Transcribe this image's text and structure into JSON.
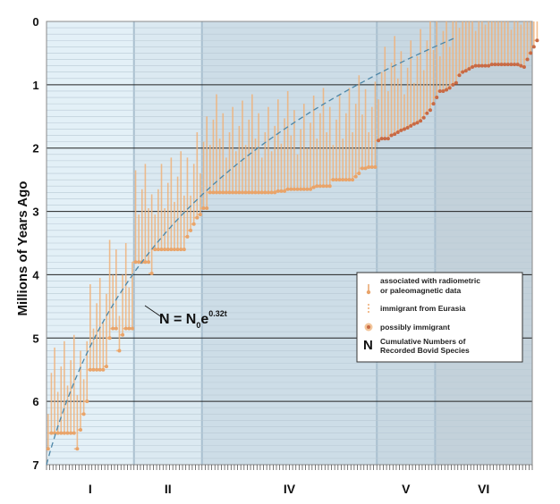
{
  "chart_data": {
    "type": "scatter",
    "title": "",
    "ylabel": "Millions of Years Ago",
    "xlabel": "",
    "ylim": [
      0,
      7
    ],
    "y_inverted": true,
    "yticks": [
      0,
      1,
      2,
      3,
      4,
      5,
      6,
      7
    ],
    "x_range_species": [
      0,
      150
    ],
    "grid": true,
    "legend_position": "right",
    "colors": {
      "radiometric": "#e9a46a",
      "radiometric_dark": "#c86a45",
      "eurasia": "#e8924a",
      "possible": "#d9803a",
      "curve": "#4d87a8",
      "bg_I": "#e3f0f7",
      "bg_II": "#dbe9f1",
      "bg_IV": "#cddde7",
      "bg_V": "#c8d8e2",
      "bg_VI": "#c3d1da"
    },
    "epochs": [
      {
        "label": "I",
        "x_start": 0,
        "x_end": 27
      },
      {
        "label": "II",
        "x_start": 27,
        "x_end": 48
      },
      {
        "label": "IV",
        "x_start": 48,
        "x_end": 102
      },
      {
        "label": "V",
        "x_start": 102,
        "x_end": 120
      },
      {
        "label": "VI",
        "x_start": 120,
        "x_end": 150
      }
    ],
    "curve_equation": {
      "main": "N = N",
      "sub": "0",
      "main2": "e",
      "sup": "0.32t"
    },
    "series": [
      {
        "name": "Cumulative Numbers of Recorded Bovid Species",
        "color": "#e9a46a",
        "ages_ma": [
          6.75,
          6.5,
          6.5,
          6.5,
          6.5,
          6.5,
          6.5,
          6.5,
          6.5,
          6.75,
          6.45,
          6.2,
          6.0,
          5.5,
          5.5,
          5.5,
          5.5,
          5.5,
          5.45,
          5.0,
          4.85,
          4.85,
          5.2,
          4.95,
          4.85,
          4.85,
          4.85,
          3.8,
          3.8,
          3.8,
          3.8,
          3.8,
          3.98,
          3.6,
          3.6,
          3.6,
          3.6,
          3.6,
          3.6,
          3.6,
          3.6,
          3.6,
          3.6,
          3.4,
          3.3,
          3.2,
          3.1,
          3.05,
          2.95,
          2.95,
          2.7,
          2.7,
          2.7,
          2.7,
          2.7,
          2.7,
          2.7,
          2.7,
          2.7,
          2.7,
          2.7,
          2.7,
          2.7,
          2.7,
          2.7,
          2.7,
          2.7,
          2.7,
          2.7,
          2.7,
          2.7,
          2.68,
          2.68,
          2.68,
          2.65,
          2.65,
          2.65,
          2.65,
          2.65,
          2.65,
          2.65,
          2.65,
          2.62,
          2.6,
          2.6,
          2.6,
          2.6,
          2.6,
          2.5,
          2.5,
          2.5,
          2.5,
          2.5,
          2.5,
          2.5,
          2.45,
          2.4,
          2.32,
          2.32,
          2.3,
          2.3,
          2.3,
          1.88,
          1.85,
          1.85,
          1.85,
          1.8,
          1.78,
          1.75,
          1.72,
          1.7,
          1.68,
          1.65,
          1.62,
          1.6,
          1.57,
          1.52,
          1.45,
          1.4,
          1.3,
          1.2,
          1.1,
          1.1,
          1.08,
          1.05,
          1.0,
          0.97,
          0.85,
          0.8,
          0.78,
          0.75,
          0.72,
          0.7,
          0.7,
          0.7,
          0.7,
          0.7,
          0.68,
          0.68,
          0.68,
          0.68,
          0.68,
          0.68,
          0.68,
          0.68,
          0.68,
          0.7,
          0.72,
          0.6,
          0.5,
          0.4,
          0.3
        ]
      }
    ],
    "legend": [
      {
        "symbol": "radiometric-marker",
        "text_lines": [
          "associated with radiometric",
          "or paleomagnetic data"
        ]
      },
      {
        "symbol": "eurasia-marker",
        "text_lines": [
          "immigrant from Eurasia"
        ]
      },
      {
        "symbol": "possible-marker",
        "text_lines": [
          "possibly immigrant"
        ]
      },
      {
        "symbol": "N",
        "text_lines": [
          "Cumulative Numbers of",
          "Recorded Bovid Species"
        ]
      }
    ]
  }
}
